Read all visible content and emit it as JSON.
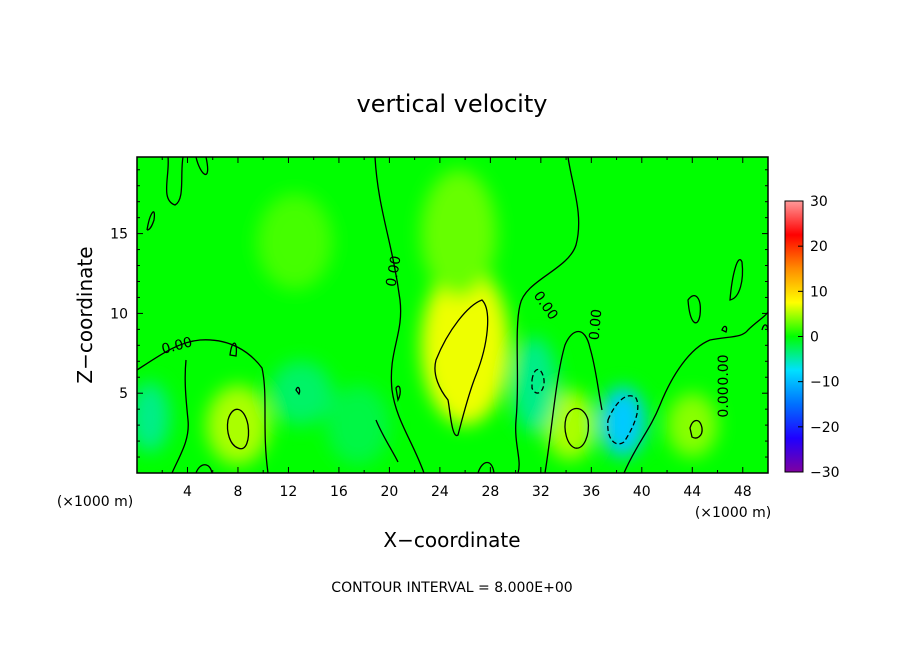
{
  "chart_data": {
    "type": "heatmap",
    "title": "vertical velocity",
    "xlabel": "X−coordinate",
    "ylabel": "Z−coordinate",
    "x_unit": "(×1000 m)",
    "x_ticks": [
      4,
      8,
      12,
      16,
      20,
      24,
      28,
      32,
      36,
      40,
      44,
      48
    ],
    "y_ticks": [
      5,
      10,
      15
    ],
    "xlim": [
      0,
      50
    ],
    "ylim": [
      0,
      19.8
    ],
    "colorbar": {
      "ticks": [
        30,
        20,
        10,
        0,
        -10,
        -20,
        -30
      ],
      "tick_labels": [
        "30",
        "20",
        "10",
        "0",
        "−10",
        "−20",
        "−30"
      ],
      "range": [
        -30,
        30
      ],
      "colors": [
        "#7f00a0",
        "#1f00ff",
        "#0070ff",
        "#00e0ff",
        "#00ff00",
        "#ffff00",
        "#ff8c00",
        "#ff0000",
        "#ff9a9a"
      ]
    },
    "contour_labels": [
      "0.00",
      "0.00",
      "0.00",
      "0.00",
      "0.00",
      "0.00"
    ],
    "contour_interval_text": "CONTOUR INTERVAL = 8.000E+00",
    "grid": false,
    "field_blobs": [
      {
        "x": 26,
        "y": 8,
        "rx": 3.5,
        "ry": 5,
        "value": 7
      },
      {
        "x": 25.5,
        "y": 15,
        "rx": 3,
        "ry": 4,
        "value": 3
      },
      {
        "x": 8,
        "y": 3,
        "rx": 2.5,
        "ry": 2.5,
        "value": 5
      },
      {
        "x": 34.3,
        "y": 3,
        "rx": 2,
        "ry": 2.2,
        "value": 5
      },
      {
        "x": 44,
        "y": 3,
        "rx": 2,
        "ry": 2,
        "value": 4
      },
      {
        "x": 38.5,
        "y": 3.2,
        "rx": 1.8,
        "ry": 2.2,
        "value": -9
      },
      {
        "x": 31.5,
        "y": 5.5,
        "rx": 1.8,
        "ry": 3,
        "value": -4
      },
      {
        "x": 13,
        "y": 5,
        "rx": 2.5,
        "ry": 2,
        "value": -3
      },
      {
        "x": 1,
        "y": 3.5,
        "rx": 1.6,
        "ry": 2.2,
        "value": -4
      },
      {
        "x": 17.5,
        "y": 3,
        "rx": 2.5,
        "ry": 2.5,
        "value": -2
      },
      {
        "x": 12.5,
        "y": 14.5,
        "rx": 3,
        "ry": 3,
        "value": 2
      }
    ]
  }
}
